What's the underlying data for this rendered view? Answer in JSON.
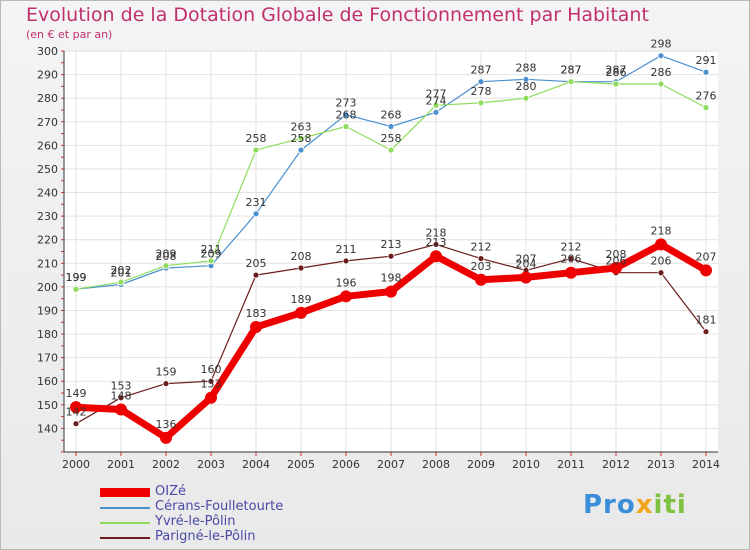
{
  "header": {
    "title": "Evolution de la Dotation Globale de Fonctionnement par Habitant",
    "subtitle": "(en € et par an)"
  },
  "logo": {
    "parts": [
      "Pro",
      "x",
      "iti"
    ],
    "colors": [
      "#3a8fd8",
      "#f2a51a",
      "#7fc241"
    ]
  },
  "chart_data": {
    "type": "line",
    "title": "Evolution de la Dotation Globale de Fonctionnement par Habitant",
    "ylabel": "(en € et par an)",
    "xlabel": "",
    "ylim": [
      130,
      300
    ],
    "yticks": [
      140,
      150,
      160,
      170,
      180,
      190,
      200,
      210,
      220,
      230,
      240,
      250,
      260,
      270,
      280,
      290,
      300
    ],
    "categories": [
      "2000",
      "2001",
      "2002",
      "2003",
      "2004",
      "2005",
      "2006",
      "2007",
      "2008",
      "2009",
      "2010",
      "2011",
      "2012",
      "2013",
      "2014"
    ],
    "series": [
      {
        "name": "Cérans-Foulletourte",
        "color": "#4a90cf",
        "values": [
          199,
          201,
          208,
          209,
          231,
          258,
          273,
          268,
          274,
          287,
          288,
          287,
          287,
          298,
          291
        ]
      },
      {
        "name": "Yvré-le-Pôlin",
        "color": "#8edc5c",
        "values": [
          199,
          202,
          209,
          211,
          258,
          263,
          268,
          258,
          277,
          278,
          280,
          287,
          286,
          286,
          276
        ]
      },
      {
        "name": "Parigné-le-Pôlin",
        "color": "#6b1c1c",
        "values": [
          142,
          153,
          159,
          160,
          205,
          208,
          211,
          213,
          218,
          212,
          207,
          212,
          206,
          206,
          181
        ]
      },
      {
        "name": "OIZé",
        "color": "#ee0000",
        "values": [
          149,
          148,
          136,
          153,
          183,
          189,
          196,
          198,
          213,
          203,
          204,
          206,
          208,
          218,
          207
        ]
      }
    ],
    "legend_order": [
      "OIZé",
      "Cérans-Foulletourte",
      "Yvré-le-Pôlin",
      "Parigné-le-Pôlin"
    ]
  }
}
